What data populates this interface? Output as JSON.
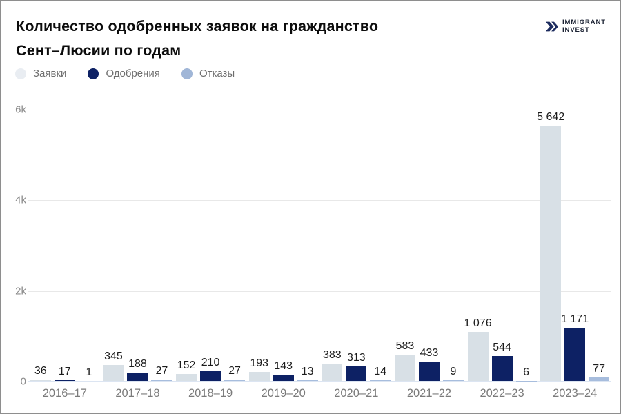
{
  "title": {
    "line1": "Количество одобренных заявок на гражданство",
    "line2": "Сент–Люсии по годам"
  },
  "logo": {
    "line1": "IMMIGRANT",
    "line2": "INVEST",
    "icon_color": "#1c2b5e"
  },
  "chart_data": {
    "type": "bar",
    "title": "Количество одобренных заявок на гражданство Сент–Люсии по годам",
    "categories": [
      "2016–17",
      "2017–18",
      "2018–19",
      "2019–20",
      "2020–21",
      "2021–22",
      "2022–23",
      "2023–24"
    ],
    "series": [
      {
        "name": "Заявки",
        "color": "#d8e0e6",
        "legend_color": "#e9edf2",
        "values": [
          36,
          345,
          152,
          193,
          383,
          583,
          1076,
          5642
        ],
        "labels": [
          "36",
          "345",
          "152",
          "193",
          "383",
          "583",
          "1 076",
          "5 642"
        ]
      },
      {
        "name": "Одобрения",
        "color": "#0d2164",
        "legend_color": "#0d2164",
        "values": [
          17,
          188,
          210,
          143,
          313,
          433,
          544,
          1171
        ],
        "labels": [
          "17",
          "188",
          "210",
          "143",
          "313",
          "433",
          "544",
          "1 171"
        ]
      },
      {
        "name": "Отказы",
        "color": "#a7bddd",
        "legend_color": "#a0b6d7",
        "values": [
          1,
          27,
          27,
          13,
          14,
          9,
          6,
          77
        ],
        "labels": [
          "1",
          "27",
          "27",
          "13",
          "14",
          "9",
          "6",
          "77"
        ]
      }
    ],
    "yticks": [
      {
        "label": "6k",
        "value": 6000
      },
      {
        "label": "4k",
        "value": 4000
      },
      {
        "label": "2k",
        "value": 2000
      },
      {
        "label": "0",
        "value": 0
      }
    ],
    "ylim": [
      0,
      6000
    ],
    "grid": "horizontal",
    "legend_position": "top-left"
  }
}
